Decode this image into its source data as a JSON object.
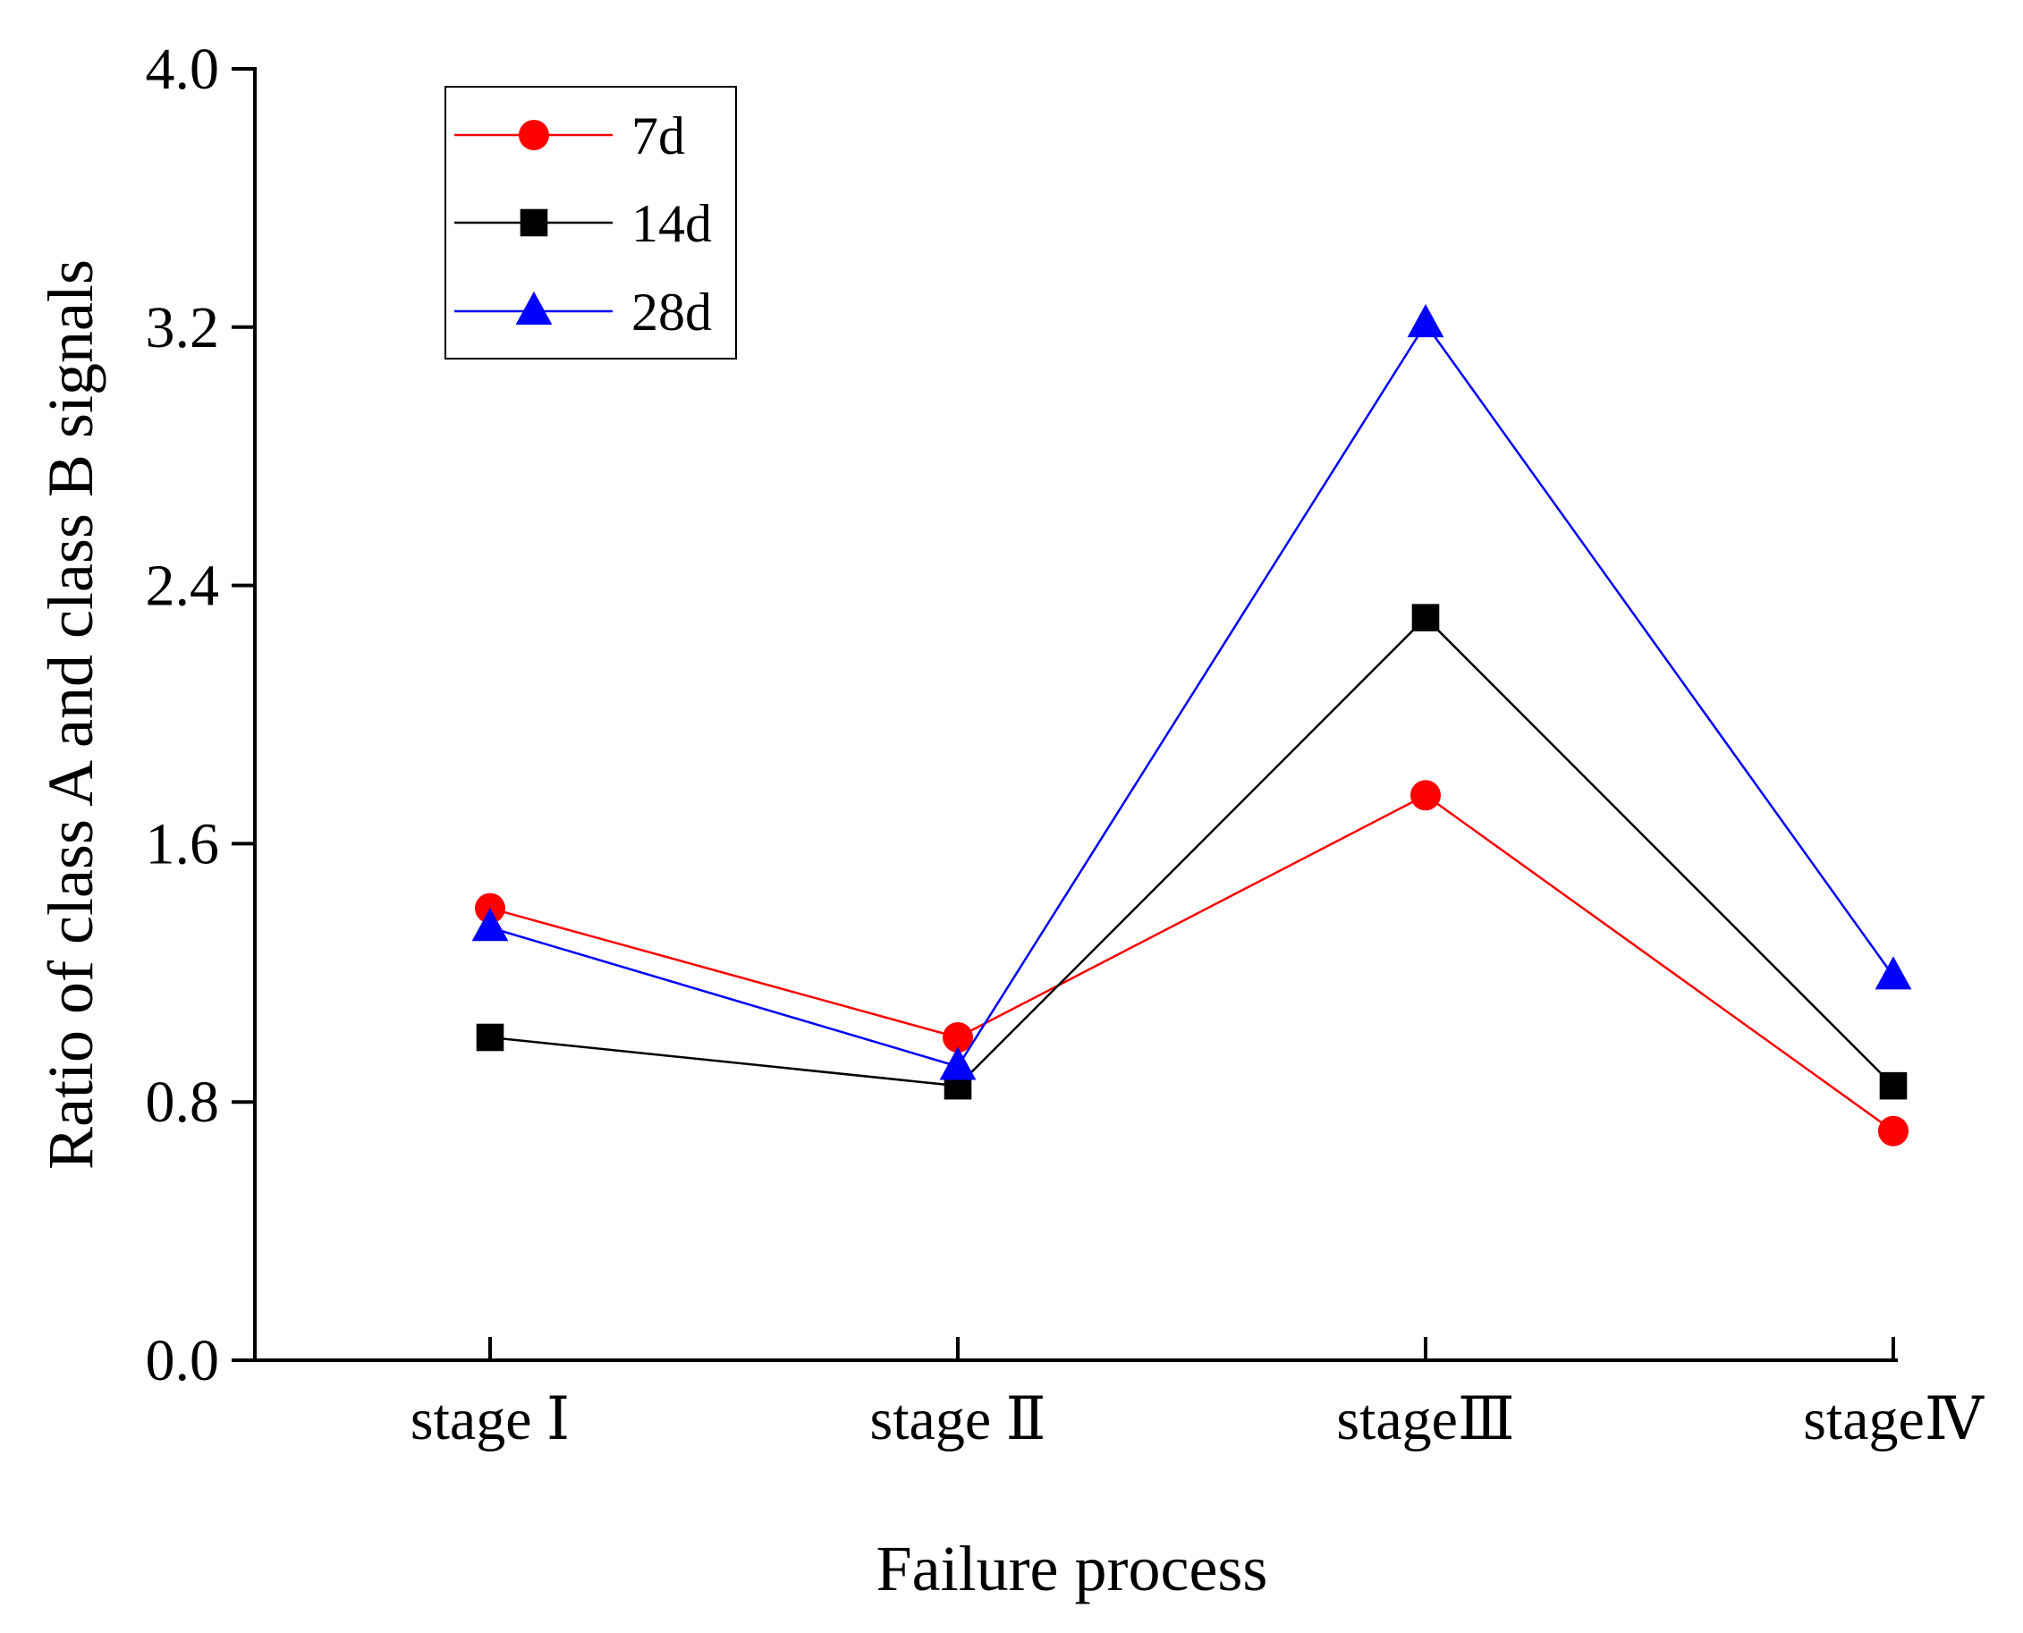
{
  "chart_data": {
    "type": "line",
    "title": "",
    "xlabel": "Failure process",
    "ylabel": "Ratio of class A and class B signals",
    "categories": [
      "stage Ⅰ",
      "stage Ⅱ",
      "stageⅢ",
      "stageⅣ"
    ],
    "ylim": [
      0.0,
      4.0
    ],
    "yticks": [
      "0.0",
      "0.8",
      "1.6",
      "2.4",
      "3.2",
      "4.0"
    ],
    "grid": false,
    "legend_position": "top-left",
    "series": [
      {
        "name": "7d",
        "color": "#ff0000",
        "marker": "circle",
        "values": [
          1.4,
          1.0,
          1.75,
          0.71
        ]
      },
      {
        "name": "14d",
        "color": "#000000",
        "marker": "square",
        "values": [
          1.0,
          0.85,
          2.3,
          0.85
        ]
      },
      {
        "name": "28d",
        "color": "#0000ff",
        "marker": "triangle",
        "values": [
          1.34,
          0.91,
          3.21,
          1.19
        ]
      }
    ]
  }
}
